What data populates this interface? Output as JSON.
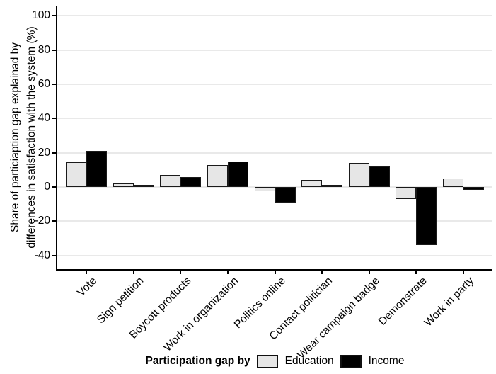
{
  "chart_data": {
    "type": "bar",
    "title": "",
    "ylabel_lines": [
      "Share of particiaption gap explainad by",
      "differences in satisfaction with the system (%)"
    ],
    "xlabel": "",
    "categories": [
      "Vote",
      "Sign petition",
      "Boycott products",
      "Work in organization",
      "Politics online",
      "Contact politician",
      "Wear campaign badge",
      "Demonstrate",
      "Work in party"
    ],
    "series": [
      {
        "name": "Education",
        "color": "#e6e6e6",
        "values": [
          14.5,
          2,
          7,
          13,
          -2.5,
          4,
          14,
          -7,
          5
        ]
      },
      {
        "name": "Income",
        "color": "#000000",
        "values": [
          21,
          0.5,
          6,
          15,
          -9,
          1,
          12,
          -34,
          -1.5
        ]
      }
    ],
    "yticks": [
      100,
      80,
      60,
      40,
      20,
      0,
      -20,
      -40
    ],
    "ylim": [
      -48,
      106
    ],
    "grid": "horizontal-major-only",
    "legend_position": "bottom"
  },
  "legend": {
    "title": "Participation gap by",
    "items": [
      {
        "label": "Education",
        "color": "#e6e6e6"
      },
      {
        "label": "Income",
        "color": "#000000"
      }
    ]
  },
  "colors": {
    "background": "#ffffff",
    "axis": "#000000",
    "gridline": "#e9e9e9",
    "bar_border": "#1a1a1a",
    "text": "#000000"
  }
}
